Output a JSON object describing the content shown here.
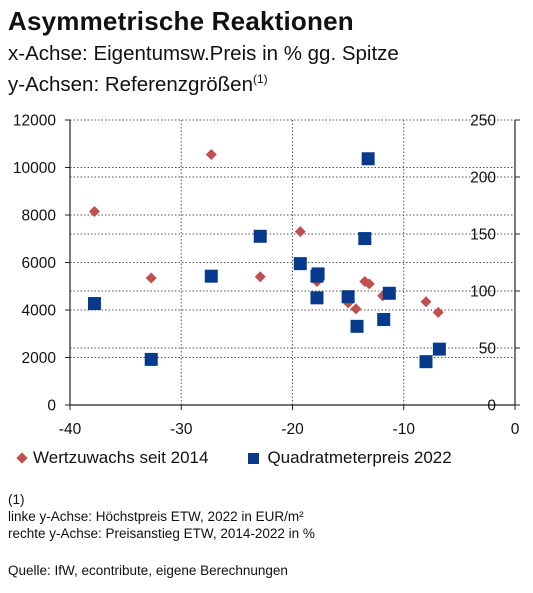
{
  "title": "Asymmetrische Reaktionen",
  "subtitle_line1": "x-Achse: Eigentumsw.Preis in % gg. Spitze",
  "subtitle_line2": "y-Achsen: Referenzgrößen",
  "subtitle_line2_sup": "(1)",
  "legend": {
    "series1_label": "Wertzuwachs seit 2014",
    "series2_label": "Quadratmeterpreis 2022"
  },
  "notes": {
    "line1": "(1)",
    "line2": "linke y-Achse: Höchstpreis ETW, 2022 in EUR/m²",
    "line3": "rechte y-Achse: Preisanstieg ETW, 2014-2022 in %"
  },
  "source": "Quelle: IfW, econtribute, eigene Berechnungen",
  "colors": {
    "series1": "#c0504d",
    "series2": "#083a8c",
    "grid": "#555555",
    "axis": "#222222"
  },
  "chart_data": {
    "type": "scatter",
    "title": "Asymmetrische Reaktionen",
    "xlim": [
      -40,
      0
    ],
    "xticks": [
      "-40",
      "-30",
      "-20",
      "-10",
      "0"
    ],
    "ylim_left": [
      0,
      12000
    ],
    "yticks_left": [
      "0",
      "2000",
      "4000",
      "6000",
      "8000",
      "10000",
      "12000"
    ],
    "ylim_right": [
      0,
      250
    ],
    "yticks_right": [
      "0",
      "50",
      "100",
      "150",
      "200",
      "250"
    ],
    "grid": true,
    "legend_position": "bottom",
    "series": [
      {
        "name": "Wertzuwachs seit 2014",
        "axis": "left",
        "marker": "diamond",
        "points": [
          {
            "x": -37.8,
            "y": 8150
          },
          {
            "x": -32.7,
            "y": 5350
          },
          {
            "x": -27.3,
            "y": 10550
          },
          {
            "x": -22.9,
            "y": 5400
          },
          {
            "x": -19.3,
            "y": 7300
          },
          {
            "x": -17.8,
            "y": 5200
          },
          {
            "x": -15.0,
            "y": 4300
          },
          {
            "x": -14.3,
            "y": 4050
          },
          {
            "x": -13.5,
            "y": 5200
          },
          {
            "x": -13.1,
            "y": 5100
          },
          {
            "x": -11.9,
            "y": 4600
          },
          {
            "x": -8.0,
            "y": 4350
          },
          {
            "x": -6.9,
            "y": 3900
          }
        ]
      },
      {
        "name": "Quadratmeterpreis 2022",
        "axis": "right",
        "marker": "square",
        "points": [
          {
            "x": -37.8,
            "y": 89
          },
          {
            "x": -32.7,
            "y": 40
          },
          {
            "x": -27.3,
            "y": 113
          },
          {
            "x": -22.9,
            "y": 148
          },
          {
            "x": -19.3,
            "y": 124
          },
          {
            "x": -17.8,
            "y": 113
          },
          {
            "x": -17.7,
            "y": 115
          },
          {
            "x": -17.8,
            "y": 94
          },
          {
            "x": -15.0,
            "y": 95
          },
          {
            "x": -14.2,
            "y": 69
          },
          {
            "x": -13.5,
            "y": 146
          },
          {
            "x": -13.2,
            "y": 216
          },
          {
            "x": -11.8,
            "y": 75
          },
          {
            "x": -11.3,
            "y": 98
          },
          {
            "x": -8.0,
            "y": 38
          },
          {
            "x": -6.8,
            "y": 49
          }
        ]
      }
    ]
  }
}
